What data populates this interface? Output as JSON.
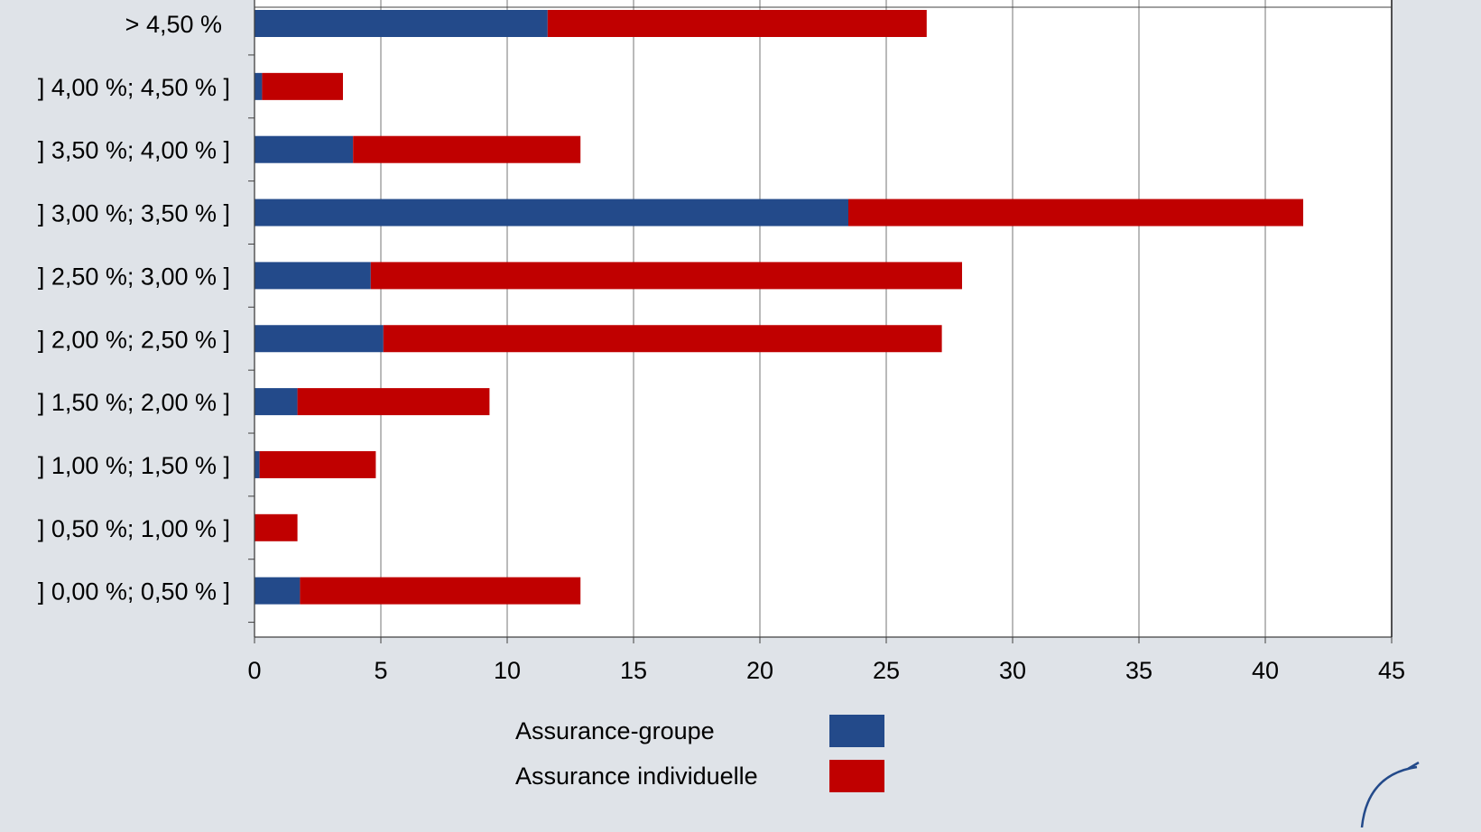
{
  "chart_data": {
    "type": "bar",
    "orientation": "horizontal",
    "stacked": true,
    "categories": [
      "> 4,50 %",
      "] 4,00 %; 4,50 % ]",
      "] 3,50 %; 4,00 % ]",
      "] 3,00 %; 3,50 % ]",
      "] 2,50 %; 3,00 % ]",
      "] 2,00 %; 2,50 % ]",
      "] 1,50 %; 2,00 % ]",
      "] 1,00 %; 1,50 % ]",
      "] 0,50 %; 1,00 % ]",
      "] 0,00 %; 0,50 % ]"
    ],
    "series": [
      {
        "name": "Assurance-groupe",
        "color": "#234a8a",
        "values": [
          11.6,
          0.3,
          3.9,
          23.5,
          4.6,
          5.1,
          1.7,
          0.2,
          0.0,
          1.8
        ]
      },
      {
        "name": "Assurance individuelle",
        "color": "#c00000",
        "values": [
          15.0,
          3.2,
          9.0,
          18.0,
          23.4,
          22.1,
          7.6,
          4.6,
          1.7,
          11.1
        ]
      }
    ],
    "xticks": [
      "0",
      "5",
      "10",
      "15",
      "20",
      "25",
      "30",
      "35",
      "40",
      "45"
    ],
    "xlim": [
      0,
      45
    ],
    "grid": "vertical",
    "legend_position": "bottom"
  }
}
